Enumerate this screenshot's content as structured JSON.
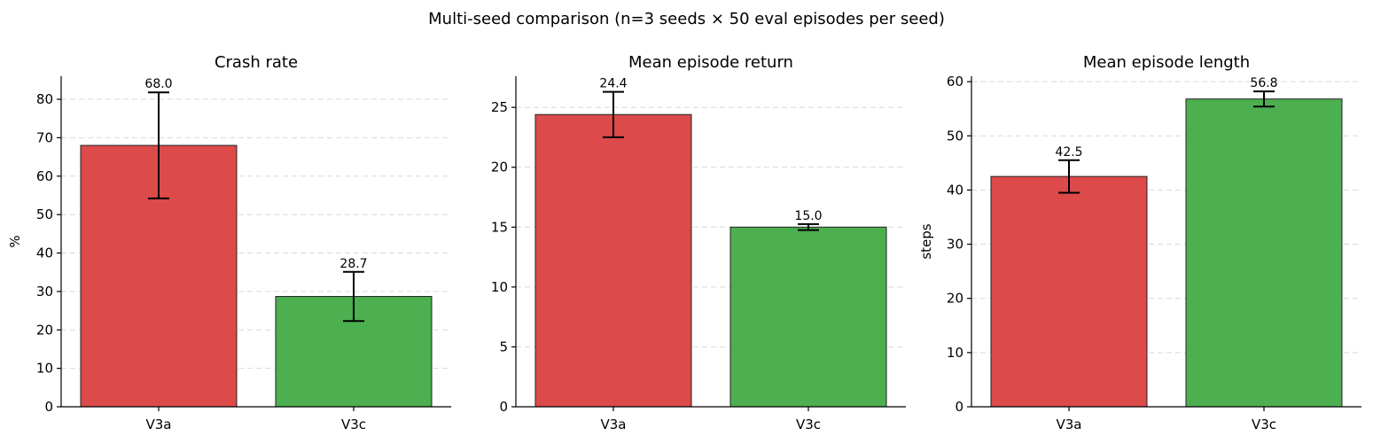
{
  "figure": {
    "suptitle": "Multi-seed comparison (n=3 seeds × 50 eval episodes per seed)"
  },
  "colors": {
    "V3a": "#dc4a4a",
    "V3c": "#4caf50"
  },
  "chart_data": [
    {
      "type": "bar",
      "title": "Crash rate",
      "ylabel": "%",
      "xlabel": "",
      "categories": [
        "V3a",
        "V3c"
      ],
      "values": [
        68.0,
        28.7
      ],
      "errors": [
        13.8,
        6.4
      ],
      "value_labels": [
        "68.0",
        "28.7"
      ],
      "ylim": [
        0,
        86
      ],
      "yticks": [
        0,
        10,
        20,
        30,
        40,
        50,
        60,
        70,
        80
      ],
      "grid": true
    },
    {
      "type": "bar",
      "title": "Mean episode return",
      "ylabel": "",
      "xlabel": "",
      "categories": [
        "V3a",
        "V3c"
      ],
      "values": [
        24.4,
        15.0
      ],
      "errors": [
        1.9,
        0.25
      ],
      "value_labels": [
        "24.4",
        "15.0"
      ],
      "ylim": [
        0,
        27.6
      ],
      "yticks": [
        0,
        5,
        10,
        15,
        20,
        25
      ],
      "grid": true
    },
    {
      "type": "bar",
      "title": "Mean episode length",
      "ylabel": "steps",
      "xlabel": "",
      "categories": [
        "V3a",
        "V3c"
      ],
      "values": [
        42.5,
        56.8
      ],
      "errors": [
        3.0,
        1.4
      ],
      "value_labels": [
        "42.5",
        "56.8"
      ],
      "ylim": [
        0,
        61
      ],
      "yticks": [
        0,
        10,
        20,
        30,
        40,
        50,
        60
      ],
      "grid": true
    }
  ]
}
